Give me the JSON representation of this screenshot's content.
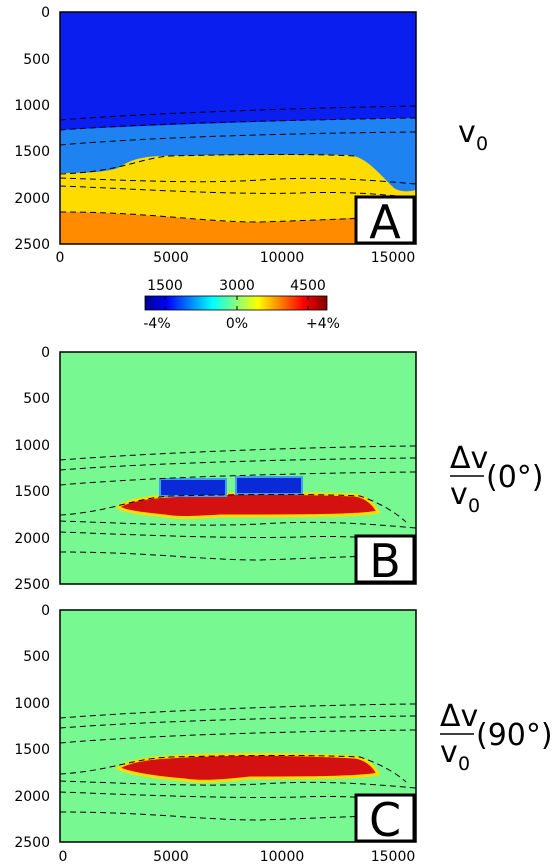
{
  "chart_data": [
    {
      "type": "heatmap",
      "panel": "A",
      "x_ticks": [
        "0",
        "5000",
        "10000",
        "15000"
      ],
      "y_ticks": [
        "0",
        "500",
        "1000",
        "1500",
        "2000",
        "2500"
      ],
      "xlim": [
        0,
        16000
      ],
      "ylim": [
        2500,
        0
      ],
      "side_label": {
        "main": "v",
        "sub": "0"
      },
      "colors": {
        "layer1": "#0a1ef0",
        "layer2": "#1e82f0",
        "layer3": "#ffdc00",
        "layer4": "#ff8c00"
      }
    },
    {
      "type": "heatmap",
      "panel": "B",
      "x_ticks": [],
      "y_ticks": [
        "0",
        "500",
        "1000",
        "1500",
        "2000",
        "2500"
      ],
      "xlim": [
        0,
        16000
      ],
      "ylim": [
        2500,
        0
      ],
      "side_label": {
        "num": "Δv",
        "den_main": "v",
        "den_sub": "0",
        "angle": "(0°)"
      },
      "colors": {
        "background": "#78f890",
        "anomaly_pos": "#d41010",
        "anomaly_neg": "#0a2ad8"
      }
    },
    {
      "type": "heatmap",
      "panel": "C",
      "x_ticks": [
        "0",
        "5000",
        "10000",
        "15000"
      ],
      "y_ticks": [
        "0",
        "500",
        "1000",
        "1500",
        "2000",
        "2500"
      ],
      "xlim": [
        0,
        16000
      ],
      "ylim": [
        2500,
        0
      ],
      "side_label": {
        "num": "Δv",
        "den_main": "v",
        "den_sub": "0",
        "angle": "(90°)"
      },
      "colors": {
        "background": "#78f890",
        "anomaly_pos": "#d41010"
      }
    }
  ],
  "colorbar": {
    "top_labels": [
      "1500",
      "3000",
      "4500"
    ],
    "bottom_labels": [
      "-4%",
      "0%",
      "+4%"
    ]
  }
}
